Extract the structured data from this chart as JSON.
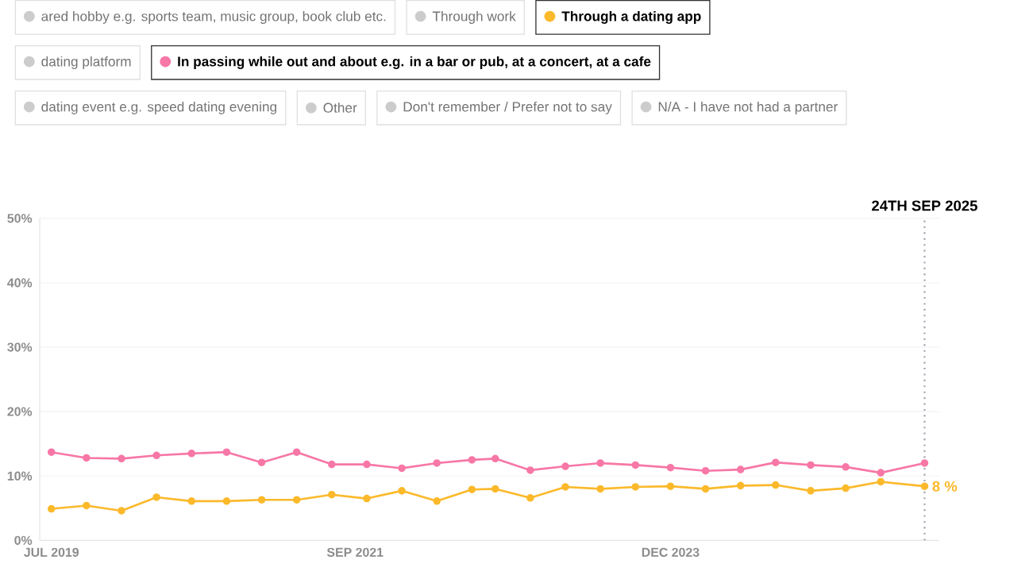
{
  "chart_data": {
    "type": "line",
    "x": [
      "2019-07",
      "2019-10",
      "2020-01",
      "2020-04",
      "2020-07",
      "2020-10",
      "2021-01",
      "2021-04",
      "2021-07",
      "2021-10",
      "2022-01",
      "2022-04",
      "2022-07",
      "2022-09",
      "2022-12",
      "2023-03",
      "2023-06",
      "2023-09",
      "2023-12",
      "2024-03",
      "2024-06",
      "2024-09",
      "2024-12",
      "2025-03",
      "2025-06",
      "2025-09-24"
    ],
    "series": [
      {
        "name": "Through a dating app",
        "color": "#fbb92b",
        "values": [
          4.9,
          5.4,
          4.6,
          6.7,
          6.1,
          6.1,
          6.3,
          6.3,
          7.1,
          6.5,
          7.7,
          6.1,
          7.9,
          8.0,
          6.6,
          8.3,
          8.0,
          8.3,
          8.4,
          8.0,
          8.5,
          8.6,
          7.7,
          8.1,
          9.1,
          8.4
        ],
        "value_labels": [
          null,
          null,
          null,
          null,
          null,
          null,
          null,
          null,
          null,
          null,
          null,
          null,
          null,
          null,
          null,
          null,
          null,
          null,
          null,
          null,
          null,
          null,
          null,
          null,
          null,
          "8 %"
        ]
      },
      {
        "name": "In passing while out and about e.g. in a bar or pub, at a concert, at a cafe",
        "color": "#f777a6",
        "values": [
          13.7,
          12.8,
          12.7,
          13.2,
          13.5,
          13.7,
          12.1,
          13.7,
          11.8,
          11.8,
          11.2,
          12.0,
          12.5,
          12.7,
          10.9,
          11.5,
          12.0,
          11.7,
          11.3,
          10.8,
          11.0,
          12.1,
          11.7,
          11.4,
          10.5,
          12.0
        ]
      }
    ],
    "xlim": [
      "2019-06",
      "2025-11"
    ],
    "xticks": [
      {
        "value": "2019-07",
        "label": "JUL 2019"
      },
      {
        "value": "2021-09",
        "label": "SEP 2021"
      },
      {
        "value": "2023-12",
        "label": "DEC 2023"
      }
    ],
    "ylim": [
      0,
      50
    ],
    "yticks": [
      {
        "value": 0,
        "label": "0%"
      },
      {
        "value": 10,
        "label": "10%"
      },
      {
        "value": 20,
        "label": "20%"
      },
      {
        "value": 30,
        "label": "30%"
      },
      {
        "value": 40,
        "label": "40%"
      },
      {
        "value": 50,
        "label": "50%"
      }
    ],
    "grid": "y",
    "marker": "circle",
    "line_style": "solid",
    "legend": "top",
    "ref_lines": [
      {
        "axis": "x",
        "value": "2025-09-24",
        "label": "24TH SEP 2025",
        "color": "#a0a3ad",
        "line_style": "dotted"
      }
    ],
    "annotations": [
      "ared hobby e.g. sports team, music group, book club etc.",
      "Through work",
      "dating platform",
      "dating event e.g. speed dating evening",
      "Other",
      "Don't remember / Prefer not to say",
      "N/A - I have not had a partner"
    ]
  }
}
